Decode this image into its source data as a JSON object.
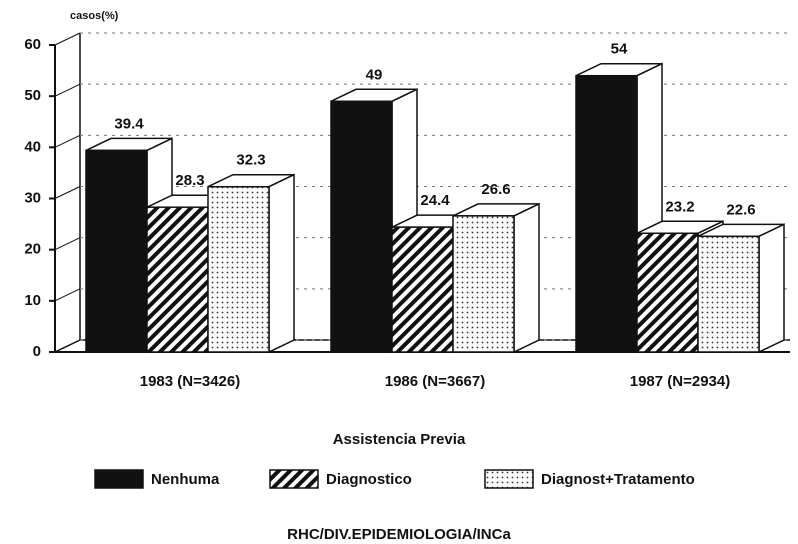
{
  "chart_data": {
    "type": "bar3d",
    "y_label": "casos(%)",
    "categories": [
      "1983 (N=3426)",
      "1986 (N=3667)",
      "1987 (N=2934)"
    ],
    "series": [
      {
        "name": "Nenhuma",
        "color": "#111111",
        "values": [
          39.4,
          49,
          54
        ]
      },
      {
        "name": "Diagnostico",
        "color": "hatch",
        "values": [
          28.3,
          24.4,
          23.2
        ]
      },
      {
        "name": "Diagnost+Tratamento",
        "color": "dots",
        "values": [
          32.3,
          26.6,
          22.6
        ]
      }
    ],
    "ylim": [
      0,
      60
    ],
    "yticks": [
      0,
      10,
      20,
      30,
      40,
      50,
      60
    ],
    "grid": true,
    "legend_title": "Assistencia Previa",
    "footer": "RHC/DIV.EPIDEMIOLOGIA/INCa"
  }
}
